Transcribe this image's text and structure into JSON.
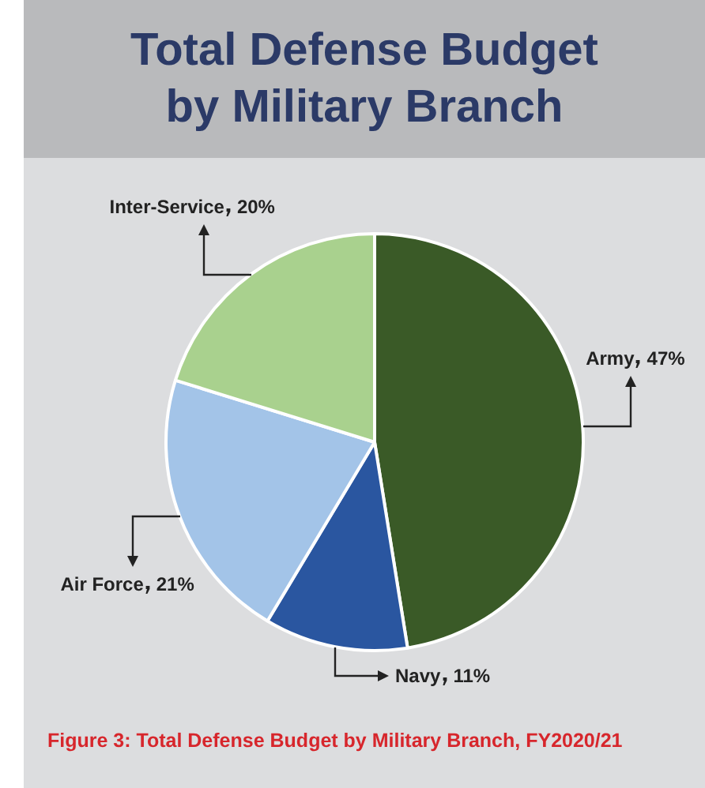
{
  "chart_data": {
    "type": "pie",
    "title": "Total Defense Budget\nby Military Branch",
    "categories": [
      "Army",
      "Navy",
      "Air Force",
      "Inter-Service"
    ],
    "values": [
      47,
      11,
      21,
      20
    ],
    "colors": [
      "#3a5a27",
      "#2a56a0",
      "#a3c4e8",
      "#a9d18e"
    ],
    "value_labels": [
      "47%",
      "11%",
      "21%",
      "20%"
    ],
    "annotations": [
      "Figure 3: Total Defense Budget by Military Branch, FY2020/21"
    ]
  }
}
